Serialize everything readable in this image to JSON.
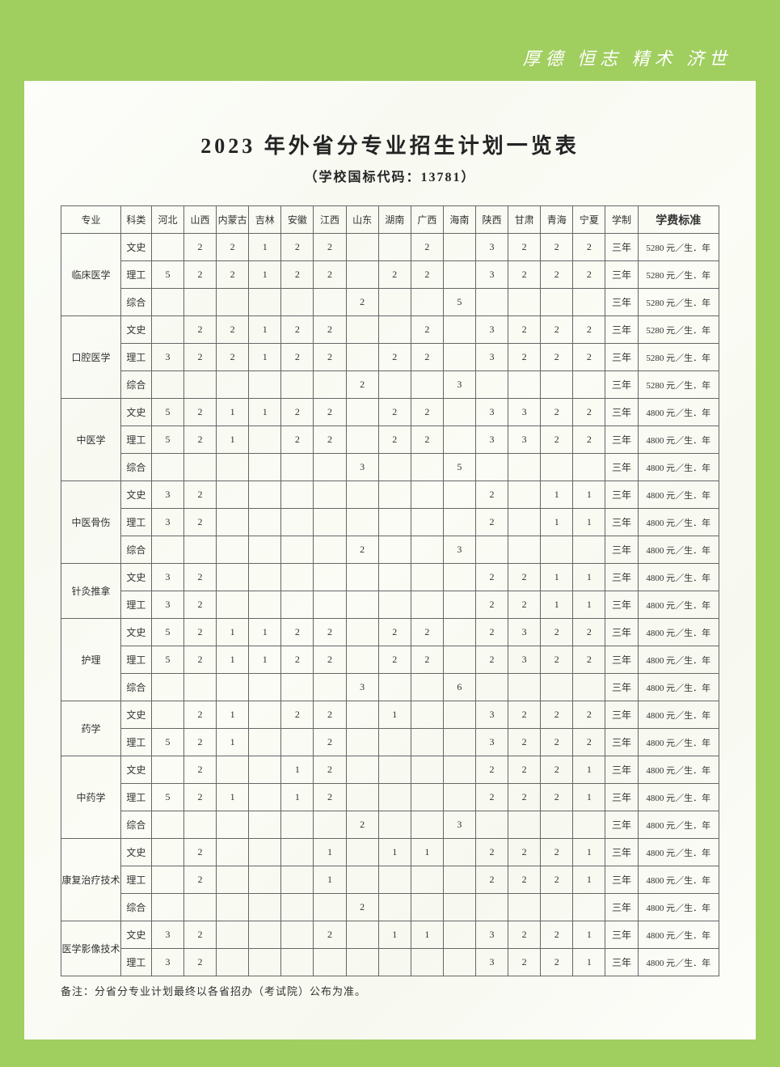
{
  "motto": "厚德  恒志  精术  济世",
  "title": "2023 年外省分专业招生计划一览表",
  "subtitle": "（学校国标代码：13781）",
  "footnote": "备注：分省分专业计划最终以各省招办（考试院）公布为准。",
  "headers": {
    "major": "专业",
    "type": "科类",
    "provinces": [
      "河北",
      "山西",
      "内蒙古",
      "吉林",
      "安徽",
      "江西",
      "山东",
      "湖南",
      "广西",
      "海南",
      "陕西",
      "甘肃",
      "青海",
      "宁夏"
    ],
    "duration": "学制",
    "fee": "学费标准"
  },
  "majors": [
    {
      "name": "临床医学",
      "rows": [
        {
          "type": "文史",
          "v": [
            "",
            "2",
            "2",
            "1",
            "2",
            "2",
            "",
            "",
            "2",
            "",
            "3",
            "2",
            "2",
            "2"
          ],
          "dur": "三年",
          "fee": "5280 元／生．年"
        },
        {
          "type": "理工",
          "v": [
            "5",
            "2",
            "2",
            "1",
            "2",
            "2",
            "",
            "2",
            "2",
            "",
            "3",
            "2",
            "2",
            "2"
          ],
          "dur": "三年",
          "fee": "5280 元／生．年"
        },
        {
          "type": "综合",
          "v": [
            "",
            "",
            "",
            "",
            "",
            "",
            "2",
            "",
            "",
            "5",
            "",
            "",
            "",
            ""
          ],
          "dur": "三年",
          "fee": "5280 元／生．年"
        }
      ]
    },
    {
      "name": "口腔医学",
      "rows": [
        {
          "type": "文史",
          "v": [
            "",
            "2",
            "2",
            "1",
            "2",
            "2",
            "",
            "",
            "2",
            "",
            "3",
            "2",
            "2",
            "2"
          ],
          "dur": "三年",
          "fee": "5280 元／生．年"
        },
        {
          "type": "理工",
          "v": [
            "3",
            "2",
            "2",
            "1",
            "2",
            "2",
            "",
            "2",
            "2",
            "",
            "3",
            "2",
            "2",
            "2"
          ],
          "dur": "三年",
          "fee": "5280 元／生．年"
        },
        {
          "type": "综合",
          "v": [
            "",
            "",
            "",
            "",
            "",
            "",
            "2",
            "",
            "",
            "3",
            "",
            "",
            "",
            ""
          ],
          "dur": "三年",
          "fee": "5280 元／生．年"
        }
      ]
    },
    {
      "name": "中医学",
      "rows": [
        {
          "type": "文史",
          "v": [
            "5",
            "2",
            "1",
            "1",
            "2",
            "2",
            "",
            "2",
            "2",
            "",
            "3",
            "3",
            "2",
            "2"
          ],
          "dur": "三年",
          "fee": "4800 元／生．年"
        },
        {
          "type": "理工",
          "v": [
            "5",
            "2",
            "1",
            "",
            "2",
            "2",
            "",
            "2",
            "2",
            "",
            "3",
            "3",
            "2",
            "2"
          ],
          "dur": "三年",
          "fee": "4800 元／生．年"
        },
        {
          "type": "综合",
          "v": [
            "",
            "",
            "",
            "",
            "",
            "",
            "3",
            "",
            "",
            "5",
            "",
            "",
            "",
            ""
          ],
          "dur": "三年",
          "fee": "4800 元／生．年"
        }
      ]
    },
    {
      "name": "中医骨伤",
      "rows": [
        {
          "type": "文史",
          "v": [
            "3",
            "2",
            "",
            "",
            "",
            "",
            "",
            "",
            "",
            "",
            "2",
            "",
            "1",
            "1"
          ],
          "dur": "三年",
          "fee": "4800 元／生．年"
        },
        {
          "type": "理工",
          "v": [
            "3",
            "2",
            "",
            "",
            "",
            "",
            "",
            "",
            "",
            "",
            "2",
            "",
            "1",
            "1"
          ],
          "dur": "三年",
          "fee": "4800 元／生．年"
        },
        {
          "type": "综合",
          "v": [
            "",
            "",
            "",
            "",
            "",
            "",
            "2",
            "",
            "",
            "3",
            "",
            "",
            "",
            ""
          ],
          "dur": "三年",
          "fee": "4800 元／生．年"
        }
      ]
    },
    {
      "name": "针灸推拿",
      "rows": [
        {
          "type": "文史",
          "v": [
            "3",
            "2",
            "",
            "",
            "",
            "",
            "",
            "",
            "",
            "",
            "2",
            "2",
            "1",
            "1"
          ],
          "dur": "三年",
          "fee": "4800 元／生．年"
        },
        {
          "type": "理工",
          "v": [
            "3",
            "2",
            "",
            "",
            "",
            "",
            "",
            "",
            "",
            "",
            "2",
            "2",
            "1",
            "1"
          ],
          "dur": "三年",
          "fee": "4800 元／生．年"
        }
      ]
    },
    {
      "name": "护理",
      "rows": [
        {
          "type": "文史",
          "v": [
            "5",
            "2",
            "1",
            "1",
            "2",
            "2",
            "",
            "2",
            "2",
            "",
            "2",
            "3",
            "2",
            "2"
          ],
          "dur": "三年",
          "fee": "4800 元／生．年"
        },
        {
          "type": "理工",
          "v": [
            "5",
            "2",
            "1",
            "1",
            "2",
            "2",
            "",
            "2",
            "2",
            "",
            "2",
            "3",
            "2",
            "2"
          ],
          "dur": "三年",
          "fee": "4800 元／生．年"
        },
        {
          "type": "综合",
          "v": [
            "",
            "",
            "",
            "",
            "",
            "",
            "3",
            "",
            "",
            "6",
            "",
            "",
            "",
            ""
          ],
          "dur": "三年",
          "fee": "4800 元／生．年"
        }
      ]
    },
    {
      "name": "药学",
      "rows": [
        {
          "type": "文史",
          "v": [
            "",
            "2",
            "1",
            "",
            "2",
            "2",
            "",
            "1",
            "",
            "",
            "3",
            "2",
            "2",
            "2"
          ],
          "dur": "三年",
          "fee": "4800 元／生．年"
        },
        {
          "type": "理工",
          "v": [
            "5",
            "2",
            "1",
            "",
            "",
            "2",
            "",
            "",
            "",
            "",
            "3",
            "2",
            "2",
            "2"
          ],
          "dur": "三年",
          "fee": "4800 元／生．年"
        }
      ]
    },
    {
      "name": "中药学",
      "rows": [
        {
          "type": "文史",
          "v": [
            "",
            "2",
            "",
            "",
            "1",
            "2",
            "",
            "",
            "",
            "",
            "2",
            "2",
            "2",
            "1"
          ],
          "dur": "三年",
          "fee": "4800 元／生．年"
        },
        {
          "type": "理工",
          "v": [
            "5",
            "2",
            "1",
            "",
            "1",
            "2",
            "",
            "",
            "",
            "",
            "2",
            "2",
            "2",
            "1"
          ],
          "dur": "三年",
          "fee": "4800 元／生．年"
        },
        {
          "type": "综合",
          "v": [
            "",
            "",
            "",
            "",
            "",
            "",
            "2",
            "",
            "",
            "3",
            "",
            "",
            "",
            ""
          ],
          "dur": "三年",
          "fee": "4800 元／生．年"
        }
      ]
    },
    {
      "name": "康复治疗技术",
      "rows": [
        {
          "type": "文史",
          "v": [
            "",
            "2",
            "",
            "",
            "",
            "1",
            "",
            "1",
            "1",
            "",
            "2",
            "2",
            "2",
            "1"
          ],
          "dur": "三年",
          "fee": "4800 元／生．年"
        },
        {
          "type": "理工",
          "v": [
            "",
            "2",
            "",
            "",
            "",
            "1",
            "",
            "",
            "",
            "",
            "2",
            "2",
            "2",
            "1"
          ],
          "dur": "三年",
          "fee": "4800 元／生．年"
        },
        {
          "type": "综合",
          "v": [
            "",
            "",
            "",
            "",
            "",
            "",
            "2",
            "",
            "",
            "",
            "",
            "",
            "",
            ""
          ],
          "dur": "三年",
          "fee": "4800 元／生．年"
        }
      ]
    },
    {
      "name": "医学影像技术",
      "rows": [
        {
          "type": "文史",
          "v": [
            "3",
            "2",
            "",
            "",
            "",
            "2",
            "",
            "1",
            "1",
            "",
            "3",
            "2",
            "2",
            "1"
          ],
          "dur": "三年",
          "fee": "4800 元／生．年"
        },
        {
          "type": "理工",
          "v": [
            "3",
            "2",
            "",
            "",
            "",
            "",
            "",
            "",
            "",
            "",
            "3",
            "2",
            "2",
            "1"
          ],
          "dur": "三年",
          "fee": "4800 元／生．年"
        }
      ]
    }
  ],
  "colors": {
    "page_bg": "#a0ce5f",
    "paper_bg": "#fbfbf7",
    "border": "#666666",
    "text": "#333333",
    "motto": "#ffffff"
  }
}
